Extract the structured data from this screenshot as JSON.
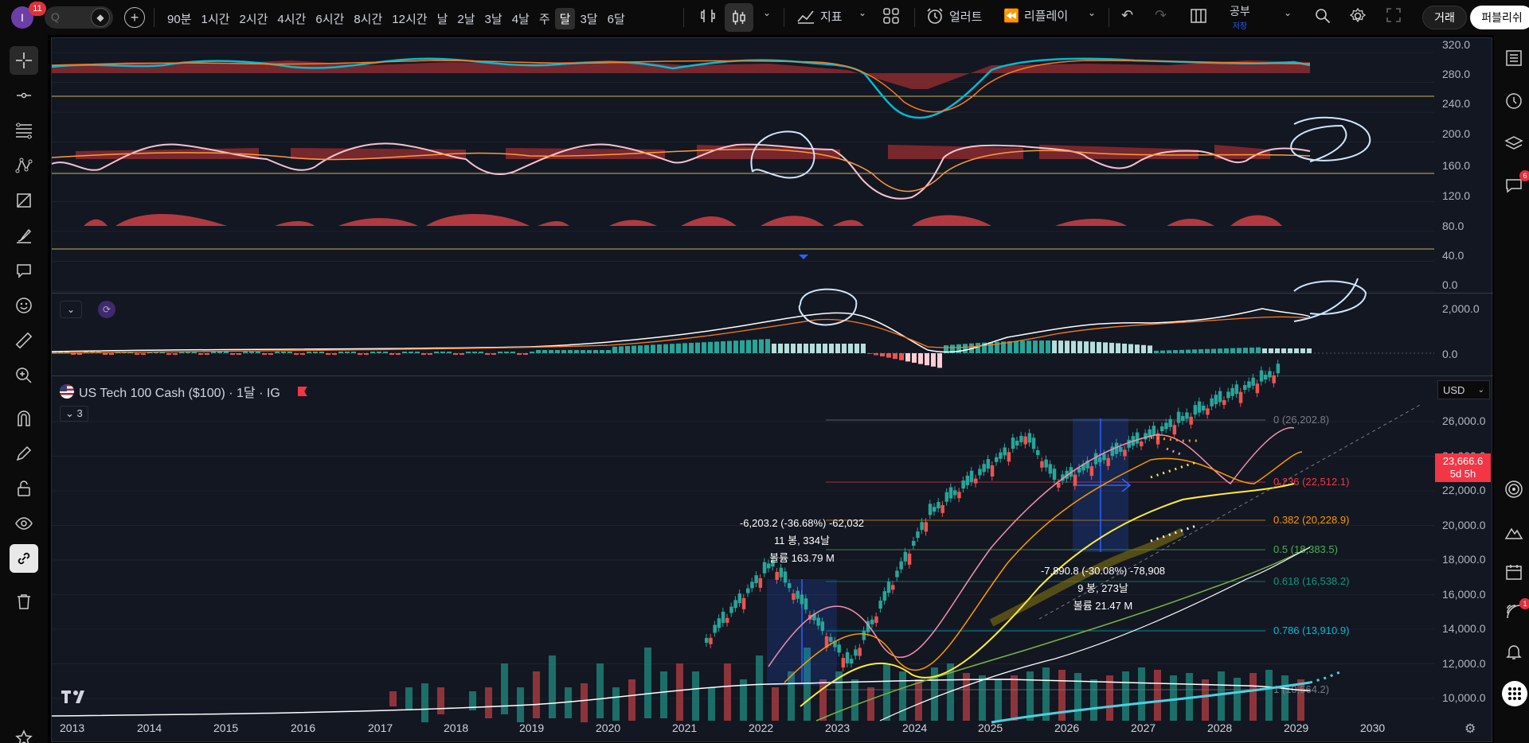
{
  "topbar": {
    "avatar_letter": "I",
    "notif_count": "11",
    "symbol_placeholder": "Q",
    "timeframes": [
      "90분",
      "1시간",
      "2시간",
      "4시간",
      "6시간",
      "8시간",
      "12시간",
      "날",
      "2날",
      "3날",
      "4날",
      "주",
      "달",
      "3달",
      "6달"
    ],
    "active_timeframe_index": 12,
    "indicators_label": "지표",
    "alert_label": "얼러트",
    "replay_label": "리플레이",
    "study_label": "공부",
    "study_sub": "저장",
    "trade_label": "거래",
    "publish_label": "퍼블리쉬"
  },
  "legend": {
    "title": "US Tech 100 Cash ($100) · 1달 · IG",
    "indicator_count": "3"
  },
  "currency": "USD",
  "price_tag": {
    "price": "23,666.6",
    "countdown": "5d 5h"
  },
  "axes": {
    "osc_ticks": [
      "320.0",
      "280.0",
      "240.0",
      "200.0",
      "160.0",
      "120.0",
      "80.0",
      "40.0",
      "0.0"
    ],
    "macd_ticks": [
      "2,000.0",
      "0.0"
    ],
    "price_ticks": [
      "26,000.0",
      "24,000.0",
      "22,000.0",
      "20,000.0",
      "18,000.0",
      "16,000.0",
      "14,000.0",
      "12,000.0",
      "10,000.0"
    ],
    "years": [
      "2013",
      "2014",
      "2015",
      "2016",
      "2017",
      "2018",
      "2019",
      "2020",
      "2021",
      "2022",
      "2023",
      "2024",
      "2025",
      "2026",
      "2027",
      "2028",
      "2029",
      "2030"
    ]
  },
  "fib_levels": [
    {
      "label": "0 (26,202.8)",
      "color": "#787b86"
    },
    {
      "label": "0.236 (22,512.1)",
      "color": "#f23645"
    },
    {
      "label": "0.382 (20,228.9)",
      "color": "#ff9800"
    },
    {
      "label": "0.5 (18,383.5)",
      "color": "#4caf50"
    },
    {
      "label": "0.618 (16,538.2)",
      "color": "#089981"
    },
    {
      "label": "0.786 (13,910.9)",
      "color": "#00bcd4"
    },
    {
      "label": "1 (10,564.2)",
      "color": "#787b86"
    }
  ],
  "measure1": {
    "line1": "-6,203.2 (-36.68%) -62,032",
    "line2": "11 봉, 334날",
    "line3": "볼륨 163.79 M"
  },
  "measure2": {
    "line1": "-7,890.8 (-30.08%) -78,908",
    "line2": "9 봉, 273날",
    "line3": "볼륨 21.47 M"
  },
  "right_badges": [
    "6",
    "1"
  ]
}
